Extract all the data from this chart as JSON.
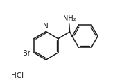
{
  "bg_color": "#ffffff",
  "line_color": "#1a1a1a",
  "line_width": 1.1,
  "font_size": 7.0,
  "NH2_label": "NH₂",
  "Br_label": "Br",
  "N_label": "N",
  "HCl_label": "HCl",
  "xlim": [
    -0.5,
    10.5
  ],
  "ylim": [
    -0.3,
    6.5
  ]
}
